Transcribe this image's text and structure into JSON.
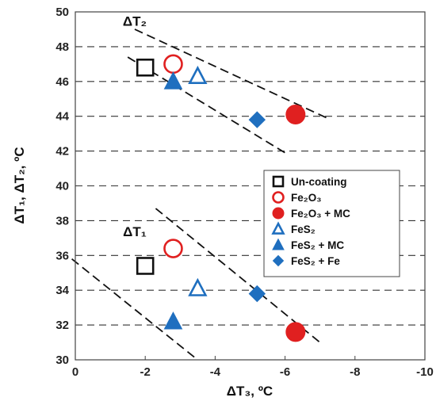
{
  "chart_data": {
    "type": "scatter",
    "xlabel": "ΔT₃, ºC",
    "ylabel": "ΔT₁, ΔT₂, ºC",
    "xlim": [
      0,
      -10
    ],
    "ylim": [
      30,
      50
    ],
    "x_reversed": true,
    "xticks": [
      0,
      -2,
      -4,
      -6,
      -8,
      -10
    ],
    "yticks": [
      30,
      32,
      34,
      36,
      38,
      40,
      42,
      44,
      46,
      48,
      50
    ],
    "grid": "horizontal dashed",
    "legend_position": "right-middle",
    "group_labels": [
      {
        "text": "ΔT₂",
        "x": -1.7,
        "y": 49.2
      },
      {
        "text": "ΔT₁",
        "x": -1.7,
        "y": 37.1
      }
    ],
    "series": [
      {
        "name": "Un-coating",
        "marker": "square-open",
        "color": "#111111",
        "points": [
          {
            "x": -2.0,
            "y": 46.8
          },
          {
            "x": -2.0,
            "y": 35.4
          }
        ]
      },
      {
        "name": "Fe₂O₃",
        "marker": "circle-open",
        "color": "#e02020",
        "points": [
          {
            "x": -2.8,
            "y": 47.0
          },
          {
            "x": -2.8,
            "y": 36.4
          }
        ]
      },
      {
        "name": "Fe₂O₃ + MC",
        "marker": "circle-filled",
        "color": "#e02020",
        "points": [
          {
            "x": -6.3,
            "y": 44.1
          },
          {
            "x": -6.3,
            "y": 31.6
          }
        ]
      },
      {
        "name": "FeS₂",
        "marker": "triangle-open",
        "color": "#1f6fbf",
        "points": [
          {
            "x": -3.5,
            "y": 46.3
          },
          {
            "x": -3.5,
            "y": 34.1
          }
        ]
      },
      {
        "name": "FeS₂ + MC",
        "marker": "triangle-filled",
        "color": "#1f6fbf",
        "points": [
          {
            "x": -2.8,
            "y": 46.0
          },
          {
            "x": -2.8,
            "y": 32.2
          }
        ]
      },
      {
        "name": "FeS₂ + Fe",
        "marker": "diamond-filled",
        "color": "#1f6fbf",
        "points": [
          {
            "x": -5.2,
            "y": 43.8
          },
          {
            "x": -5.2,
            "y": 33.8
          }
        ]
      }
    ],
    "trend_lines": [
      {
        "group": "ΔT₂",
        "from": {
          "x": -1.7,
          "y": 49.0
        },
        "to": {
          "x": -7.2,
          "y": 43.9
        }
      },
      {
        "group": "ΔT₂",
        "from": {
          "x": -1.5,
          "y": 47.4
        },
        "to": {
          "x": -6.0,
          "y": 41.9
        }
      },
      {
        "group": "ΔT₁",
        "from": {
          "x": -2.3,
          "y": 38.7
        },
        "to": {
          "x": -7.0,
          "y": 31.0
        }
      },
      {
        "group": "ΔT₁",
        "from": {
          "x": 0.1,
          "y": 35.8
        },
        "to": {
          "x": -3.5,
          "y": 30.0
        }
      }
    ]
  }
}
